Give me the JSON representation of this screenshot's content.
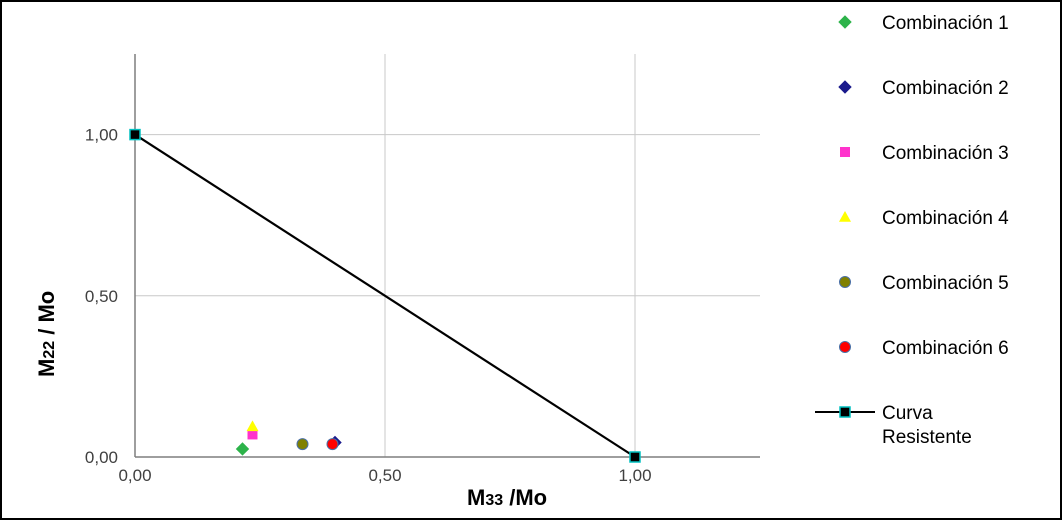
{
  "chart_data": {
    "type": "scatter",
    "xlabel": {
      "main": "M",
      "sub": "33",
      "rest": " /Mo"
    },
    "ylabel": {
      "main": "M",
      "sub": "22",
      "rest": " / Mo"
    },
    "xlim": [
      0,
      1.25
    ],
    "ylim": [
      0,
      1.25
    ],
    "x_ticks": [
      0,
      0.5,
      1.0
    ],
    "x_tick_labels": [
      "0,00",
      "0,50",
      "1,00"
    ],
    "y_ticks": [
      0,
      0.5,
      1.0
    ],
    "y_tick_labels": [
      "0,00",
      "0,50",
      "1,00"
    ],
    "grid": true,
    "legend_position": "right",
    "series": [
      {
        "name": "Combinación 1",
        "marker": "diamond",
        "color": "#2db34a",
        "points": [
          [
            0.215,
            0.025
          ]
        ]
      },
      {
        "name": "Combinación 2",
        "marker": "diamond",
        "color": "#1a1a8c",
        "points": [
          [
            0.4,
            0.045
          ]
        ]
      },
      {
        "name": "Combinación 3",
        "marker": "square",
        "color": "#ff33cc",
        "points": [
          [
            0.235,
            0.07
          ]
        ]
      },
      {
        "name": "Combinación 4",
        "marker": "triangle",
        "color": "#ffff00",
        "points": [
          [
            0.235,
            0.095
          ]
        ]
      },
      {
        "name": "Combinación 5",
        "marker": "circle",
        "color": "#808000",
        "points": [
          [
            0.335,
            0.04
          ]
        ]
      },
      {
        "name": "Combinación 6",
        "marker": "circle",
        "color": "#ff0000",
        "points": [
          [
            0.395,
            0.04
          ]
        ]
      },
      {
        "name": "Curva Resistente",
        "name_lines": [
          "Curva",
          "Resistente"
        ],
        "marker": "square-line",
        "color": "#000000",
        "marker_edge": "#00c0c0",
        "points": [
          [
            0,
            1.0
          ],
          [
            1.0,
            0
          ]
        ]
      }
    ]
  }
}
